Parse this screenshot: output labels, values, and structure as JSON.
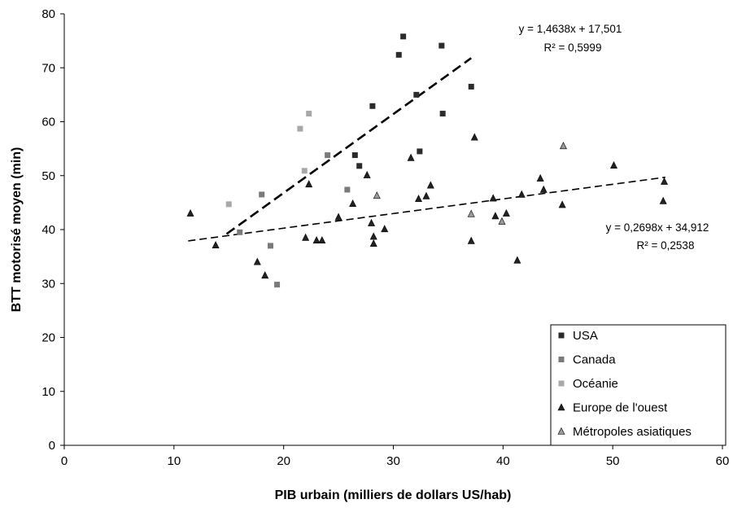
{
  "chart_data": {
    "type": "scatter",
    "xlabel": "PIB urbain (milliers de dollars US/hab)",
    "ylabel": "BTT motorisé moyen (min)",
    "xlim": [
      0,
      60
    ],
    "ylim": [
      0,
      80
    ],
    "x_ticks": [
      "0",
      "10",
      "20",
      "30",
      "40",
      "50",
      "60"
    ],
    "y_ticks": [
      "0",
      "10",
      "20",
      "30",
      "40",
      "50",
      "60",
      "70",
      "80"
    ],
    "grid": false,
    "legend_position": "bottom-right",
    "series": [
      {
        "name": "USA",
        "marker": "square",
        "color": "#2b2b2b",
        "points": [
          [
            26.5,
            53.8
          ],
          [
            26.9,
            51.8
          ],
          [
            28.1,
            62.9
          ],
          [
            30.5,
            72.4
          ],
          [
            30.9,
            75.8
          ],
          [
            32.1,
            65.0
          ],
          [
            32.4,
            54.5
          ],
          [
            34.4,
            74.1
          ],
          [
            34.5,
            61.5
          ],
          [
            37.1,
            66.5
          ]
        ]
      },
      {
        "name": "Canada",
        "marker": "square",
        "color": "#7a7a7a",
        "points": [
          [
            16.0,
            39.5
          ],
          [
            18.0,
            46.5
          ],
          [
            18.8,
            37.0
          ],
          [
            19.4,
            29.8
          ],
          [
            24.0,
            53.8
          ],
          [
            25.8,
            47.4
          ]
        ]
      },
      {
        "name": "Océanie",
        "marker": "square",
        "color": "#a8a8a8",
        "points": [
          [
            15.0,
            44.7
          ],
          [
            21.5,
            58.7
          ],
          [
            21.9,
            50.9
          ],
          [
            22.3,
            61.5
          ]
        ]
      },
      {
        "name": "Europe de l'ouest",
        "marker": "triangle",
        "color": "#222222",
        "points": [
          [
            11.5,
            43.0
          ],
          [
            13.8,
            37.1
          ],
          [
            17.6,
            34.0
          ],
          [
            18.3,
            31.5
          ],
          [
            22.0,
            38.5
          ],
          [
            22.3,
            48.4
          ],
          [
            23.0,
            38.0
          ],
          [
            23.5,
            38.0
          ],
          [
            25.0,
            42.3
          ],
          [
            26.3,
            44.8
          ],
          [
            27.6,
            50.1
          ],
          [
            28.0,
            41.2
          ],
          [
            28.2,
            38.7
          ],
          [
            28.2,
            37.4
          ],
          [
            29.2,
            40.1
          ],
          [
            31.6,
            53.3
          ],
          [
            32.3,
            45.7
          ],
          [
            33.0,
            46.2
          ],
          [
            33.4,
            48.2
          ],
          [
            37.1,
            37.9
          ],
          [
            37.4,
            57.1
          ],
          [
            39.1,
            45.8
          ],
          [
            39.3,
            42.5
          ],
          [
            40.3,
            43.0
          ],
          [
            41.3,
            34.3
          ],
          [
            41.7,
            46.5
          ],
          [
            43.4,
            49.5
          ],
          [
            43.7,
            47.4
          ],
          [
            45.4,
            44.6
          ],
          [
            50.1,
            51.9
          ],
          [
            54.6,
            45.3
          ],
          [
            54.7,
            48.9
          ]
        ]
      },
      {
        "name": "Métropoles asiatiques",
        "marker": "triangle",
        "color": "#9a9a9a",
        "points": [
          [
            28.5,
            46.3
          ],
          [
            37.1,
            42.9
          ],
          [
            39.9,
            41.5
          ],
          [
            45.5,
            55.5
          ]
        ]
      }
    ],
    "trendlines": [
      {
        "x": [
          14.8,
          37.1
        ],
        "y": [
          39.2,
          71.8
        ],
        "equation": "y = 1,4638x + 17,501",
        "r2": "R² = 0,5999",
        "stroke_width": 2.6,
        "dash": "12,6"
      },
      {
        "x": [
          11.3,
          54.8
        ],
        "y": [
          37.9,
          49.7
        ],
        "equation": "y = 0,2698x + 34,912",
        "r2": "R² = 0,2538",
        "stroke_width": 1.6,
        "dash": "9,5"
      }
    ]
  }
}
